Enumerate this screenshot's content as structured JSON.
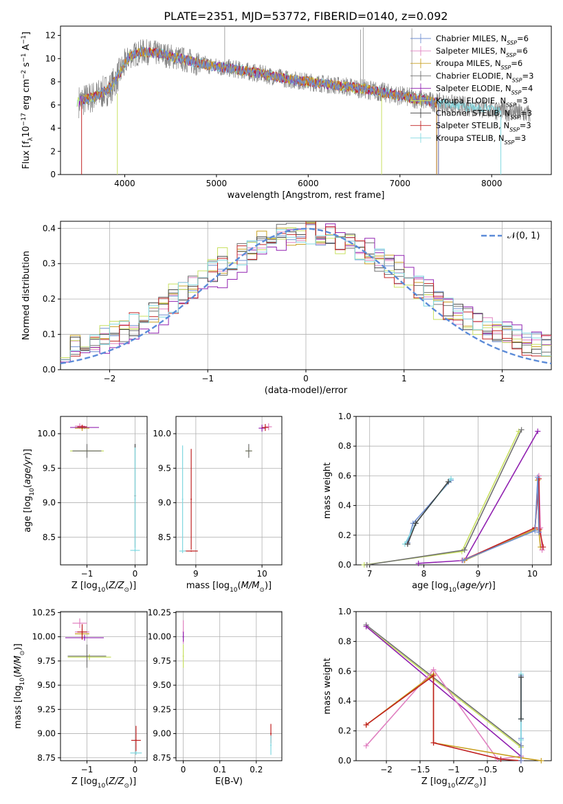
{
  "figure": {
    "title": "PLATE=2351, MJD=53772, FIBERID=0140, z=0.092"
  },
  "colors": {
    "Chabrier MILES": "#6f8fd0",
    "Salpeter MILES": "#e080c0",
    "Kroupa MILES": "#c8a020",
    "Chabrier ELODIE": "#707070",
    "Salpeter ELODIE": "#9020b0",
    "Kroupa ELODIE": "#c8e060",
    "Chabrier STELIB": "#404040",
    "Salpeter STELIB": "#c02020",
    "Kroupa STELIB": "#80d8e0",
    "data": "#808080",
    "normal": "#5b8bd8"
  },
  "chart_data": [
    {
      "id": "spectrum",
      "type": "line",
      "xlabel": "wavelength [Angstrom, rest frame]",
      "ylabel": "Flux [f_λ10^-17 erg cm^-2 s^-1 A^-1]",
      "xlim": [
        3300,
        8650
      ],
      "ylim": [
        0,
        12.8
      ],
      "xticks": [
        4000,
        5000,
        6000,
        7000,
        8000
      ],
      "yticks": [
        0,
        2,
        4,
        6,
        8,
        10,
        12
      ],
      "legend_position": "top-right",
      "legend": [
        {
          "model": "Chabrier MILES",
          "label": "Chabrier MILES, N",
          "sub": "SSP",
          "tail": "=6"
        },
        {
          "model": "Salpeter MILES",
          "label": "Salpeter MILES, N",
          "sub": "SSP",
          "tail": "=6"
        },
        {
          "model": "Kroupa MILES",
          "label": "Kroupa MILES, N",
          "sub": "SSP",
          "tail": "=6"
        },
        {
          "model": "Chabrier ELODIE",
          "label": "Chabrier ELODIE, N",
          "sub": "SSP",
          "tail": "=3"
        },
        {
          "model": "Salpeter ELODIE",
          "label": "Salpeter ELODIE, N",
          "sub": "SSP",
          "tail": "=4"
        },
        {
          "model": "Kroupa ELODIE",
          "label": "Kroupa ELODIE, N",
          "sub": "SSP",
          "tail": "=3"
        },
        {
          "model": "Chabrier STELIB",
          "label": "Chabrier STELIB, N",
          "sub": "SSP",
          "tail": "=3"
        },
        {
          "model": "Salpeter STELIB",
          "label": "Salpeter STELIB, N",
          "sub": "SSP",
          "tail": "=3"
        },
        {
          "model": "Kroupa STELIB",
          "label": "Kroupa STELIB, N",
          "sub": "SSP",
          "tail": "=3"
        }
      ],
      "continuum": [
        [
          3500,
          6.3
        ],
        [
          3700,
          6.8
        ],
        [
          3850,
          7.5
        ],
        [
          3950,
          8.8
        ],
        [
          4050,
          10.2
        ],
        [
          4200,
          10.6
        ],
        [
          4400,
          10.4
        ],
        [
          4600,
          10.0
        ],
        [
          4800,
          9.6
        ],
        [
          5000,
          9.3
        ],
        [
          5200,
          9.1
        ],
        [
          5400,
          8.8
        ],
        [
          5600,
          8.5
        ],
        [
          5800,
          8.2
        ],
        [
          6000,
          8.0
        ],
        [
          6200,
          7.8
        ],
        [
          6400,
          7.6
        ],
        [
          6600,
          7.4
        ],
        [
          6800,
          7.1
        ],
        [
          7000,
          6.8
        ],
        [
          7200,
          6.5
        ],
        [
          7400,
          6.2
        ],
        [
          7600,
          6.0
        ],
        [
          7800,
          5.8
        ],
        [
          8000,
          5.6
        ],
        [
          8200,
          5.4
        ],
        [
          8400,
          5.2
        ]
      ]
    },
    {
      "id": "residuals",
      "type": "line",
      "xlabel": "(data-model)/error",
      "ylabel": "Normed distribution",
      "xlim": [
        -2.5,
        2.5
      ],
      "ylim": [
        0,
        0.42
      ],
      "xticks": [
        -2,
        -1,
        0,
        1,
        2
      ],
      "yticks": [
        0.0,
        0.1,
        0.2,
        0.3,
        0.4
      ],
      "legend_position": "top-right",
      "legend": [
        {
          "label": "𝒩(0, 1)"
        }
      ],
      "normal": {
        "mean": 0,
        "sigma": 1
      }
    },
    {
      "id": "z-age",
      "type": "scatter",
      "xlabel": "Z [log10(Z/Z⊙)]",
      "ylabel": "age [log10(age/yr)]",
      "xlim": [
        -1.55,
        0.25
      ],
      "ylim": [
        8.1,
        10.25
      ],
      "xticks": [
        -1,
        0
      ],
      "yticks": [
        8.5,
        9.0,
        9.5,
        10.0
      ],
      "points": [
        {
          "model": "Salpeter MILES",
          "x": -1.15,
          "y": 10.11,
          "xerr": 0.1,
          "yerr": 0.04
        },
        {
          "model": "Salpeter ELODIE",
          "x": -1.05,
          "y": 10.09,
          "xerr": 0.3,
          "yerr": 0.02
        },
        {
          "model": "Kroupa MILES",
          "x": -1.1,
          "y": 10.08,
          "xerr": 0.15,
          "yerr": 0.04
        },
        {
          "model": "Salpeter STELIB",
          "x": -1.1,
          "y": 10.1,
          "xerr": 0.1,
          "yerr": 0.03
        },
        {
          "model": "Kroupa ELODIE",
          "x": -1.0,
          "y": 9.75,
          "xerr": 0.35,
          "yerr": 0.03
        },
        {
          "model": "Chabrier ELODIE",
          "x": -1.0,
          "y": 9.75,
          "xerr": 0.3,
          "yerr": 0.1
        },
        {
          "model": "Kroupa STELIB",
          "x": 0.0,
          "y": 8.31,
          "xerr": 0.1,
          "yerr": 0.02
        },
        {
          "model": "Chabrier STELIB",
          "x": 0.0,
          "y": 9.1,
          "xerr": 0.0,
          "yerr": 0.75
        },
        {
          "model": "Kroupa STELIB",
          "x": 0.0,
          "y": 9.05,
          "xerr": 0.0,
          "yerr": 0.75
        }
      ]
    },
    {
      "id": "mass-age",
      "type": "scatter",
      "xlabel": "mass [log10(M/M⊙)]",
      "xlim": [
        8.7,
        10.3
      ],
      "ylim": [
        8.1,
        10.25
      ],
      "xticks": [
        9,
        10
      ],
      "yticks": [
        8.5,
        9.0,
        9.5,
        10.0
      ],
      "points": [
        {
          "model": "Salpeter MILES",
          "x": 10.1,
          "y": 10.1,
          "xerr": 0.05,
          "yerr": 0.05
        },
        {
          "model": "Salpeter ELODIE",
          "x": 10.0,
          "y": 10.08,
          "xerr": 0.05,
          "yerr": 0.05
        },
        {
          "model": "Salpeter STELIB",
          "x": 10.05,
          "y": 10.09,
          "xerr": 0.05,
          "yerr": 0.05
        },
        {
          "model": "Kroupa ELODIE",
          "x": 9.8,
          "y": 9.75,
          "xerr": 0.05,
          "yerr": 0.05
        },
        {
          "model": "Chabrier ELODIE",
          "x": 9.8,
          "y": 9.75,
          "xerr": 0.05,
          "yerr": 0.1
        },
        {
          "model": "Salpeter STELIB",
          "x": 8.93,
          "y": 9.05,
          "xerr": 0.0,
          "yerr": 0.73
        },
        {
          "model": "Kroupa STELIB",
          "x": 8.8,
          "y": 9.05,
          "xerr": 0.0,
          "yerr": 0.78
        },
        {
          "model": "Salpeter STELIB",
          "x": 8.93,
          "y": 8.3,
          "xerr": 0.1,
          "yerr": 0.0
        },
        {
          "model": "Kroupa STELIB",
          "x": 8.8,
          "y": 8.3,
          "xerr": 0.05,
          "yerr": 0.0
        }
      ]
    },
    {
      "id": "age-weight",
      "type": "line",
      "xlabel": "age [log10(age/yr)]",
      "ylabel": "mass weight",
      "xlim": [
        6.75,
        10.35
      ],
      "ylim": [
        0,
        1.0
      ],
      "xticks": [
        7,
        8,
        9,
        10
      ],
      "yticks": [
        0.0,
        0.2,
        0.4,
        0.6,
        0.8,
        1.0
      ],
      "series": [
        {
          "model": "Chabrier MILES",
          "x": [
            7.7,
            7.8,
            8.5
          ],
          "y": [
            0.15,
            0.28,
            0.57
          ]
        },
        {
          "model": "Kroupa STELIB",
          "x": [
            7.65,
            7.85,
            8.5
          ],
          "y": [
            0.14,
            0.28,
            0.58
          ]
        },
        {
          "model": "Chabrier STELIB",
          "x": [
            7.7,
            7.85,
            8.45
          ],
          "y": [
            0.14,
            0.28,
            0.56
          ]
        },
        {
          "model": "Kroupa ELODIE",
          "x": [
            6.9,
            8.7,
            9.75
          ],
          "y": [
            0.0,
            0.09,
            0.9
          ]
        },
        {
          "model": "Chabrier ELODIE",
          "x": [
            6.95,
            8.75,
            9.8
          ],
          "y": [
            0.0,
            0.1,
            0.91
          ]
        },
        {
          "model": "Salpeter ELODIE",
          "x": [
            7.9,
            8.75,
            10.1
          ],
          "y": [
            0.01,
            0.03,
            0.9
          ]
        },
        {
          "model": "Salpeter MILES",
          "x": [
            8.7,
            10.05,
            10.12,
            10.15,
            10.18
          ],
          "y": [
            0.03,
            0.24,
            0.6,
            0.25,
            0.1
          ]
        },
        {
          "model": "Kroupa MILES",
          "x": [
            8.75,
            10.05,
            10.1,
            10.12,
            10.15
          ],
          "y": [
            0.03,
            0.24,
            0.57,
            0.23,
            0.12
          ]
        },
        {
          "model": "Salpeter STELIB",
          "x": [
            8.72,
            10.05,
            10.12,
            10.13,
            10.2
          ],
          "y": [
            0.03,
            0.25,
            0.58,
            0.24,
            0.12
          ]
        },
        {
          "model": "Chabrier MILES",
          "x": [
            8.72,
            10.05,
            10.1,
            10.12
          ],
          "y": [
            0.03,
            0.23,
            0.59,
            0.22
          ]
        }
      ]
    },
    {
      "id": "z-mass",
      "type": "scatter",
      "xlabel": "Z [log10(Z/Z⊙)]",
      "ylabel": "mass [log10(M/M⊙)]",
      "xlim": [
        -1.55,
        0.25
      ],
      "ylim": [
        8.72,
        10.26
      ],
      "xticks": [
        -1,
        0
      ],
      "yticks": [
        8.75,
        9.0,
        9.25,
        9.5,
        9.75,
        10.0,
        10.25
      ],
      "points": [
        {
          "model": "Salpeter MILES",
          "x": -1.15,
          "y": 10.14,
          "xerr": 0.15,
          "yerr": 0.05
        },
        {
          "model": "Salpeter MILES",
          "x": -1.1,
          "y": 10.05,
          "xerr": 0.15,
          "yerr": 0.08
        },
        {
          "model": "Kroupa MILES",
          "x": -1.1,
          "y": 10.03,
          "xerr": 0.15,
          "yerr": 0.05
        },
        {
          "model": "Salpeter ELODIE",
          "x": -1.05,
          "y": 9.99,
          "xerr": 0.4,
          "yerr": 0.03
        },
        {
          "model": "Salpeter STELIB",
          "x": -1.1,
          "y": 10.05,
          "xerr": 0.1,
          "yerr": 0.08
        },
        {
          "model": "Kroupa ELODIE",
          "x": -0.95,
          "y": 9.79,
          "xerr": 0.45,
          "yerr": 0.03
        },
        {
          "model": "Chabrier ELODIE",
          "x": -1.0,
          "y": 9.8,
          "xerr": 0.4,
          "yerr": 0.12
        },
        {
          "model": "Salpeter STELIB",
          "x": 0.02,
          "y": 8.93,
          "xerr": 0.1,
          "yerr": 0.15
        },
        {
          "model": "Kroupa STELIB",
          "x": 0.02,
          "y": 8.8,
          "xerr": 0.12,
          "yerr": 0.02
        }
      ]
    },
    {
      "id": "ebv-mass",
      "type": "scatter",
      "xlabel": "E(B-V)",
      "xlim": [
        -0.02,
        0.27
      ],
      "ylim": [
        8.72,
        10.26
      ],
      "xticks": [
        0.0,
        0.1,
        0.2
      ],
      "yticks": [
        8.75,
        9.0,
        9.25,
        9.5,
        9.75,
        10.0,
        10.25
      ],
      "points": [
        {
          "model": "Salpeter MILES",
          "x": 0.0,
          "y": 10.05,
          "xerr": 0.0,
          "yerr": 0.12
        },
        {
          "model": "Salpeter ELODIE",
          "x": 0.0,
          "y": 10.0,
          "xerr": 0.0,
          "yerr": 0.05
        },
        {
          "model": "Kroupa ELODIE",
          "x": 0.0,
          "y": 9.8,
          "xerr": 0.0,
          "yerr": 0.12
        },
        {
          "model": "Salpeter STELIB",
          "x": 0.24,
          "y": 9.0,
          "xerr": 0.0,
          "yerr": 0.1
        },
        {
          "model": "Kroupa STELIB",
          "x": 0.24,
          "y": 8.88,
          "xerr": 0.0,
          "yerr": 0.1
        }
      ]
    },
    {
      "id": "z-weight",
      "type": "line",
      "xlabel": "Z [log10(Z/Z⊙)]",
      "ylabel": "mass weight",
      "xlim": [
        -2.45,
        0.45
      ],
      "ylim": [
        0,
        1.0
      ],
      "xticks": [
        -2.0,
        -1.5,
        -1.0,
        -0.5,
        0.0
      ],
      "yticks": [
        0.0,
        0.2,
        0.4,
        0.6,
        0.8,
        1.0
      ],
      "series": [
        {
          "model": "Chabrier ELODIE",
          "x": [
            -2.3,
            0.0
          ],
          "y": [
            0.91,
            0.1
          ]
        },
        {
          "model": "Kroupa ELODIE",
          "x": [
            -2.3,
            0.0
          ],
          "y": [
            0.9,
            0.09
          ]
        },
        {
          "model": "Salpeter ELODIE",
          "x": [
            -2.3,
            0.0
          ],
          "y": [
            0.9,
            0.03
          ]
        },
        {
          "model": "Salpeter MILES",
          "x": [
            -2.3,
            -1.3,
            -0.35,
            0.0
          ],
          "y": [
            0.1,
            0.61,
            0.01,
            0.03
          ]
        },
        {
          "model": "Kroupa MILES",
          "x": [
            -2.3,
            -1.3,
            -1.3,
            0.0,
            0.3
          ],
          "y": [
            0.24,
            0.58,
            0.12,
            0.02,
            0.0
          ]
        },
        {
          "model": "Salpeter STELIB",
          "x": [
            -2.3,
            -1.3,
            -1.3,
            -0.3,
            0.0
          ],
          "y": [
            0.24,
            0.57,
            0.12,
            0.01,
            0.0
          ]
        },
        {
          "model": "Chabrier MILES",
          "x": [
            0.0,
            0.0,
            0.0,
            0.0
          ],
          "y": [
            0.57,
            0.28,
            0.15,
            0.0
          ]
        },
        {
          "model": "Kroupa STELIB",
          "x": [
            0.0,
            0.0,
            0.0
          ],
          "y": [
            0.58,
            0.28,
            0.14
          ]
        },
        {
          "model": "Chabrier STELIB",
          "x": [
            0.0,
            0.0
          ],
          "y": [
            0.56,
            0.28
          ]
        }
      ]
    }
  ]
}
